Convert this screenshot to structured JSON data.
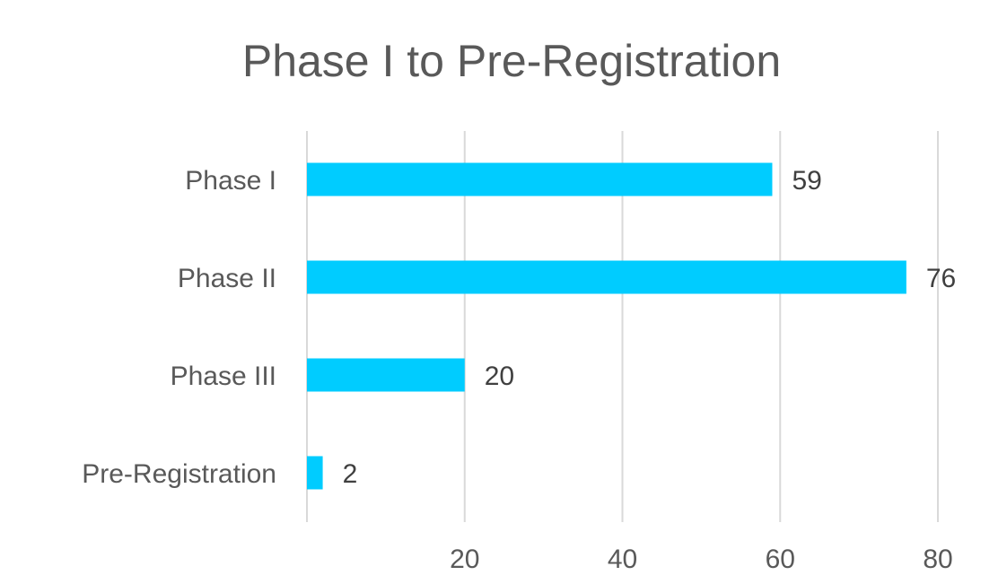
{
  "chart_data": {
    "type": "bar",
    "orientation": "horizontal",
    "title": "Phase I to Pre-Registration",
    "xlabel": "",
    "ylabel": "",
    "categories": [
      "Phase I",
      "Phase II",
      "Phase III",
      "Pre-Registration"
    ],
    "values": [
      59,
      76,
      20,
      2
    ],
    "xlim": [
      0,
      80
    ],
    "x_ticks": [
      20,
      40,
      60,
      80
    ],
    "data_labels": true,
    "grid": "vertical",
    "legend": "none",
    "colors": {
      "bar": "#00CCFF",
      "gridline": "#D9D9D9",
      "text": "#595959",
      "data_label": "#404040"
    }
  }
}
